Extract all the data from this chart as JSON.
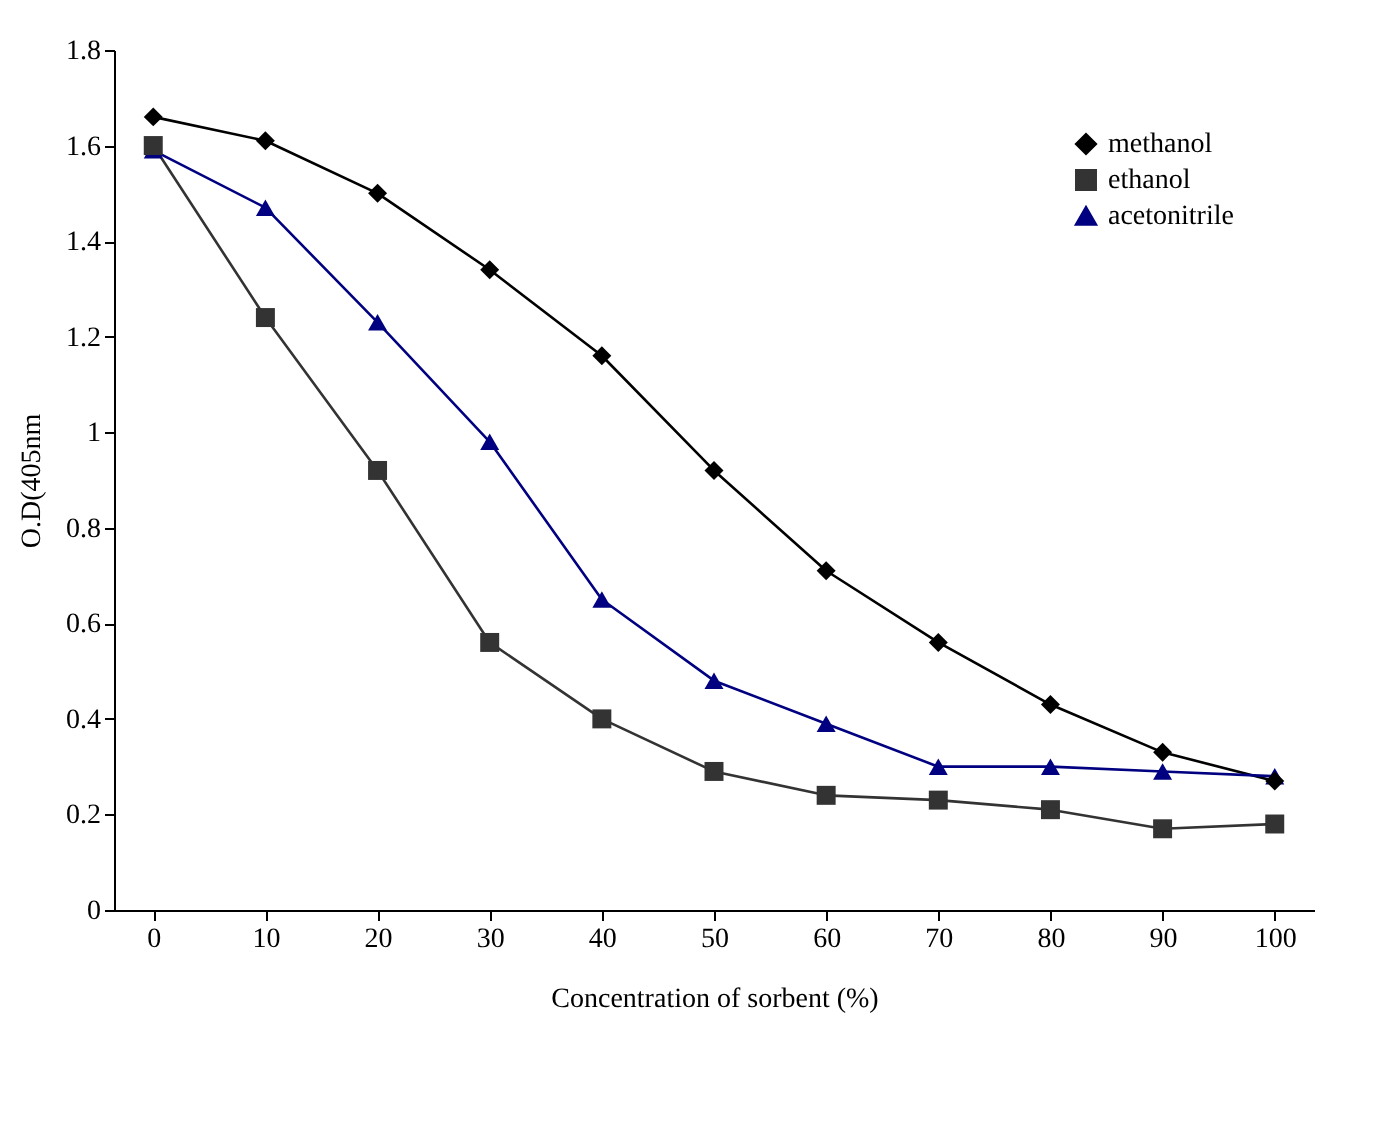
{
  "chart_data": {
    "type": "line",
    "xlabel": "Concentration of sorbent (%)",
    "ylabel": "O.D(405nm",
    "categories": [
      "0",
      "10",
      "20",
      "30",
      "40",
      "50",
      "60",
      "70",
      "80",
      "90",
      "100"
    ],
    "ylim": [
      0,
      1.8
    ],
    "yticks": [
      0,
      0.2,
      0.4,
      0.6,
      0.8,
      1,
      1.2,
      1.4,
      1.6,
      1.8
    ],
    "grid": false,
    "legend": "top right",
    "series": [
      {
        "name": "methanol",
        "color": "#000000",
        "marker": "diamond",
        "values": [
          1.66,
          1.61,
          1.5,
          1.34,
          1.16,
          0.92,
          0.71,
          0.56,
          0.43,
          0.33,
          0.27
        ]
      },
      {
        "name": "ethanol",
        "color": "#333333",
        "marker": "square",
        "values": [
          1.6,
          1.24,
          0.92,
          0.56,
          0.4,
          0.29,
          0.24,
          0.23,
          0.21,
          0.17,
          0.18
        ]
      },
      {
        "name": "acetonitrile",
        "color": "#000080",
        "marker": "triangle",
        "values": [
          1.59,
          1.47,
          1.23,
          0.98,
          0.65,
          0.48,
          0.39,
          0.3,
          0.3,
          0.29,
          0.28
        ]
      }
    ]
  }
}
